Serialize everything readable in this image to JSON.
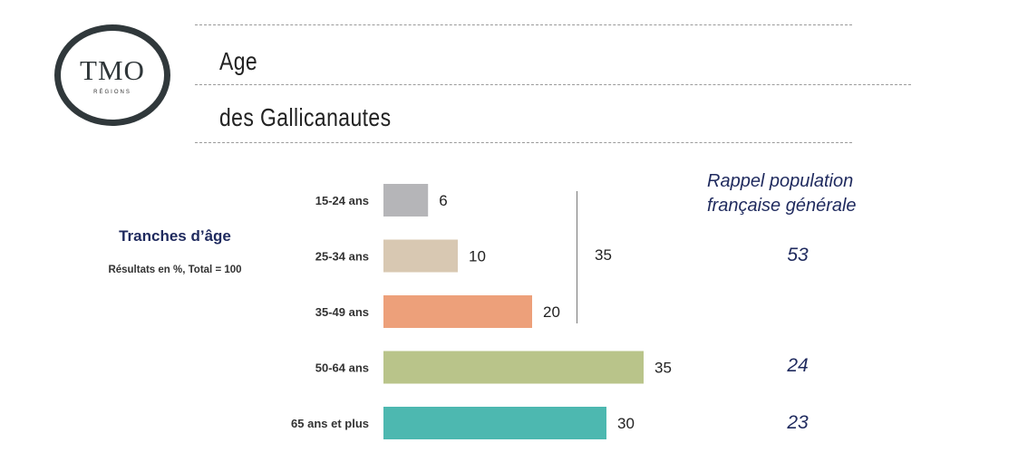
{
  "logo": {
    "main": "TMO",
    "sub": "RÉGIONS"
  },
  "title": {
    "line1": "Age",
    "line2": "des Gallicanautes"
  },
  "side": {
    "title": "Tranches d’âge",
    "note": "Résultats en %, Total = 100"
  },
  "reference": {
    "header_line1": "Rappel population",
    "header_line2": "française générale",
    "values": [
      "53",
      "24",
      "23"
    ]
  },
  "group_total": "35",
  "chart_data": {
    "type": "bar",
    "orientation": "horizontal",
    "categories": [
      "15-24 ans",
      "25-34 ans",
      "35-49 ans",
      "50-64 ans",
      "65 ans et plus"
    ],
    "values": [
      6,
      10,
      20,
      35,
      30
    ],
    "colors": [
      "#b5b5b8",
      "#d8c8b2",
      "#eda07a",
      "#b9c48a",
      "#4db8b0"
    ],
    "xlim": [
      0,
      35
    ]
  }
}
